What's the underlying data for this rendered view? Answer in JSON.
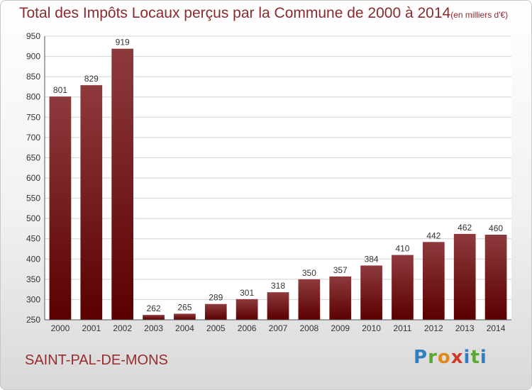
{
  "title": "Total des Impôts Locaux perçus par la Commune de 2000 à 2014",
  "unit": "(en milliers d'€)",
  "commune": "SAINT-PAL-DE-MONS",
  "logo": "Proxiti",
  "colors": {
    "bar_top": "#8e3a3d",
    "bar_bottom": "#5a0000",
    "title": "#8a2a2e"
  },
  "chart_data": {
    "type": "bar",
    "categories": [
      "2000",
      "2001",
      "2002",
      "2003",
      "2004",
      "2005",
      "2006",
      "2007",
      "2008",
      "2009",
      "2010",
      "2011",
      "2012",
      "2013",
      "2014"
    ],
    "values": [
      801,
      829,
      919,
      262,
      265,
      289,
      301,
      318,
      350,
      357,
      384,
      410,
      442,
      462,
      460
    ],
    "ylim": [
      250,
      950
    ],
    "yticks": [
      250,
      300,
      350,
      400,
      450,
      500,
      550,
      600,
      650,
      700,
      750,
      800,
      850,
      900,
      950
    ],
    "grid": true,
    "xlabel": "",
    "ylabel": ""
  }
}
